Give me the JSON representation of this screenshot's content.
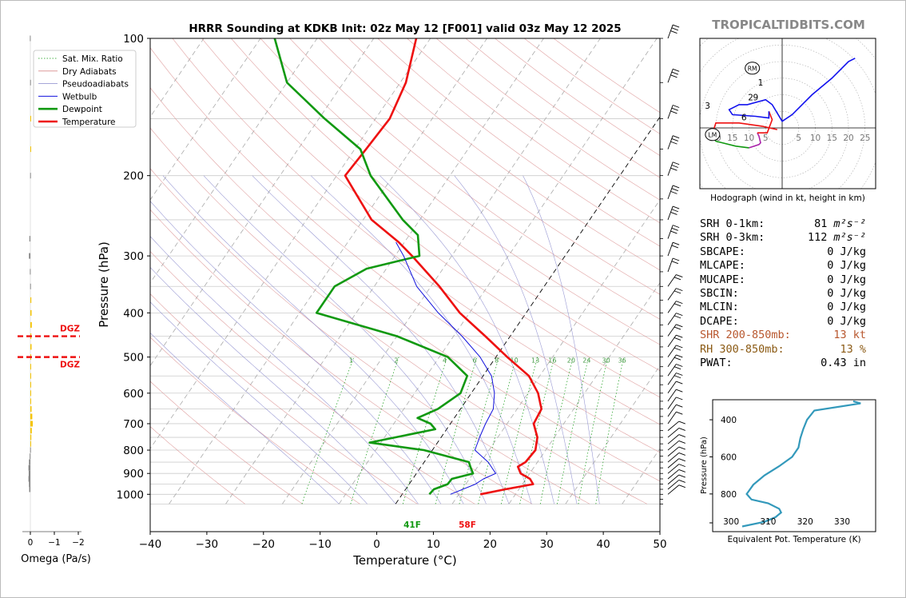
{
  "page": {
    "title": "HRRR Sounding at KDKB Init: 02z May 12 [F001] valid 03z May 12 2025",
    "watermark": "TROPICALTIDBITS.COM"
  },
  "chart_data": [
    {
      "type": "line",
      "name": "skew-t",
      "ylabel": "Pressure (hPa)",
      "xlabel": "Temperature (°C)",
      "y_scale": "log",
      "ylim": [
        1050,
        100
      ],
      "xlim": [
        -40,
        50
      ],
      "y_ticks": [
        100,
        200,
        300,
        400,
        500,
        600,
        700,
        800,
        900,
        1000
      ],
      "x_ticks": [
        -40,
        -30,
        -20,
        -10,
        0,
        10,
        20,
        30,
        40,
        50
      ],
      "legend": [
        "Sat. Mix. Ratio",
        "Dry Adiabats",
        "Pseudoadiabats",
        "Wetbulb",
        "Dewpoint",
        "Temperature"
      ],
      "legend_location": "upper left",
      "mixing_ratio_labels": [
        "1",
        "2",
        "4",
        "6",
        "8",
        "10",
        "13",
        "16",
        "20",
        "24",
        "30",
        "36"
      ],
      "surface_labels": {
        "dewpoint": "41F",
        "temperature": "58F"
      },
      "series": [
        {
          "name": "Temperature",
          "color": "#ee1111",
          "points": [
            [
              1000,
              13.8
            ],
            [
              975,
              17.6
            ],
            [
              950,
              21.9
            ],
            [
              925,
              20.7
            ],
            [
              900,
              18.4
            ],
            [
              870,
              17.1
            ],
            [
              850,
              17.9
            ],
            [
              800,
              18.2
            ],
            [
              750,
              17.0
            ],
            [
              700,
              14.7
            ],
            [
              650,
              14.3
            ],
            [
              600,
              11.8
            ],
            [
              550,
              8.1
            ],
            [
              500,
              2.0
            ],
            [
              450,
              -4.4
            ],
            [
              400,
              -11.7
            ],
            [
              350,
              -18.5
            ],
            [
              300,
              -27.0
            ],
            [
              280,
              -31.0
            ],
            [
              250,
              -38.5
            ],
            [
              200,
              -48.5
            ],
            [
              175,
              -48.0
            ],
            [
              150,
              -47.5
            ],
            [
              125,
              -49.0
            ],
            [
              100,
              -52.5
            ]
          ]
        },
        {
          "name": "Dewpoint",
          "color": "#119911",
          "points": [
            [
              1000,
              4.8
            ],
            [
              975,
              5.0
            ],
            [
              950,
              6.8
            ],
            [
              925,
              6.9
            ],
            [
              900,
              10.0
            ],
            [
              870,
              8.7
            ],
            [
              850,
              7.9
            ],
            [
              800,
              -1.5
            ],
            [
              770,
              -12.0
            ],
            [
              720,
              -2.0
            ],
            [
              700,
              -3.5
            ],
            [
              680,
              -6.5
            ],
            [
              650,
              -4.0
            ],
            [
              600,
              -1.9
            ],
            [
              550,
              -2.8
            ],
            [
              500,
              -8.5
            ],
            [
              450,
              -20.0
            ],
            [
              400,
              -37.0
            ],
            [
              350,
              -37.0
            ],
            [
              320,
              -33.5
            ],
            [
              300,
              -25.7
            ],
            [
              270,
              -28.5
            ],
            [
              250,
              -33.0
            ],
            [
              200,
              -44.0
            ],
            [
              175,
              -49.0
            ],
            [
              150,
              -59.0
            ],
            [
              125,
              -70.0
            ],
            [
              100,
              -77.5
            ]
          ]
        },
        {
          "name": "Wetbulb",
          "color": "#1111dd",
          "points": [
            [
              1000,
              8.5
            ],
            [
              950,
              11.7
            ],
            [
              925,
              12.5
            ],
            [
              900,
              14.0
            ],
            [
              850,
              11.3
            ],
            [
              800,
              7.5
            ],
            [
              750,
              6.8
            ],
            [
              700,
              6.2
            ],
            [
              650,
              5.8
            ],
            [
              600,
              4.1
            ],
            [
              550,
              1.5
            ],
            [
              500,
              -2.8
            ],
            [
              450,
              -8.5
            ],
            [
              400,
              -15.5
            ],
            [
              350,
              -22.5
            ],
            [
              300,
              -28.5
            ],
            [
              280,
              -31.5
            ]
          ]
        }
      ]
    },
    {
      "type": "bar",
      "name": "omega-profile",
      "xlabel": "Omega (Pa/s)",
      "x_ticks": [
        "0",
        "−1",
        "−2"
      ],
      "dgz_label": "DGZ",
      "dgz_layer_hpa": [
        450,
        500
      ],
      "levels_hpa": [
        100,
        125,
        150,
        175,
        200,
        275,
        300,
        325,
        350,
        375,
        400,
        425,
        450,
        475,
        500,
        525,
        550,
        575,
        600,
        625,
        650,
        675,
        700,
        725,
        750,
        775,
        800,
        825,
        850,
        875,
        900,
        925,
        950,
        975
      ],
      "values": [
        0.02,
        0.01,
        -0.02,
        -0.01,
        0.01,
        0.04,
        0.06,
        0.02,
        0.01,
        -0.04,
        -0.05,
        -0.06,
        -0.04,
        -0.05,
        -0.03,
        -0.03,
        -0.02,
        -0.02,
        -0.02,
        -0.03,
        -0.05,
        -0.08,
        -0.1,
        -0.06,
        -0.04,
        -0.02,
        0.01,
        0.03,
        0.06,
        0.08,
        0.07,
        0.08,
        0.06,
        0.05
      ]
    },
    {
      "type": "line",
      "name": "hodograph",
      "title": "Hodograph (wind in kt, height in km)",
      "ring_labels": [
        "20",
        "15",
        "10",
        "5",
        "5",
        "10",
        "15",
        "20",
        "25"
      ],
      "markers": [
        "RM",
        "LM"
      ],
      "height_labels": [
        "1",
        "2",
        "3",
        "6",
        "9"
      ],
      "series": [
        {
          "name": "0-1 km",
          "color": "#ee1111",
          "points": [
            [
              -1.5,
              -0.5
            ],
            [
              -6,
              0.5
            ],
            [
              -13,
              1.5
            ],
            [
              -20,
              1.5
            ],
            [
              -21,
              -1.5
            ]
          ]
        },
        {
          "name": "1-3 km",
          "color": "#119911",
          "points": [
            [
              -21,
              -1.5
            ],
            [
              -20,
              -4
            ],
            [
              -14,
              -5.5
            ],
            [
              -10,
              -6
            ]
          ]
        },
        {
          "name": "3-6 km",
          "color": "#aa22aa",
          "points": [
            [
              -10,
              -6
            ],
            [
              -7,
              -5
            ],
            [
              -6.5,
              -4.5
            ],
            [
              -7,
              -2.5
            ],
            [
              -7.5,
              -1.5
            ]
          ]
        },
        {
          "name": "6-9 km",
          "color": "#ee1111",
          "points": [
            [
              -7.5,
              -1.5
            ],
            [
              -4.5,
              -1.5
            ],
            [
              -3,
              2.5
            ],
            [
              -4,
              5
            ]
          ]
        },
        {
          "name": "9+ km",
          "color": "#1111ee",
          "points": [
            [
              -4,
              5
            ],
            [
              -4,
              3
            ],
            [
              -8,
              3.5
            ],
            [
              -15,
              4
            ],
            [
              -16,
              5.5
            ],
            [
              -13,
              7
            ],
            [
              -10.5,
              7
            ],
            [
              -5,
              8.5
            ],
            [
              -3,
              7
            ],
            [
              0,
              2
            ],
            [
              3,
              4
            ],
            [
              9,
              10
            ],
            [
              15,
              15
            ],
            [
              20,
              20
            ],
            [
              22,
              21
            ]
          ]
        }
      ],
      "rm": [
        -9,
        18
      ],
      "lm": [
        -21,
        -2
      ]
    },
    {
      "type": "line",
      "name": "theta-e-profile",
      "xlabel": "Equivalent Pot. Temperature (K)",
      "ylabel": "Pressure (hPa)",
      "y_ticks": [
        400,
        600,
        800
      ],
      "x_ticks": [
        300,
        310,
        320,
        330
      ],
      "series": [
        {
          "name": "Equivalent Pot. Temperature",
          "color": "#3399bb",
          "points": [
            [
              300,
              333
            ],
            [
              312,
              335
            ],
            [
              350,
              322.5
            ],
            [
              400,
              320.5
            ],
            [
              450,
              319.5
            ],
            [
              500,
              318.7
            ],
            [
              550,
              318.2
            ],
            [
              600,
              316.5
            ],
            [
              650,
              313
            ],
            [
              700,
              309
            ],
            [
              750,
              306
            ],
            [
              800,
              304.2
            ],
            [
              830,
              305.5
            ],
            [
              850,
              310
            ],
            [
              880,
              313
            ],
            [
              900,
              313.5
            ],
            [
              925,
              312
            ],
            [
              950,
              309
            ],
            [
              975,
              303
            ]
          ]
        }
      ]
    }
  ],
  "stats": [
    {
      "label": "SRH 0-1km:",
      "value": "81",
      "unit": "m²s⁻²",
      "color": "#000000"
    },
    {
      "label": "SRH 0-3km:",
      "value": "112",
      "unit": "m²s⁻²",
      "color": "#000000"
    },
    {
      "label": "SBCAPE:",
      "value": "0 J/kg",
      "color": "#000000"
    },
    {
      "label": "MLCAPE:",
      "value": "0 J/kg",
      "color": "#000000"
    },
    {
      "label": "MUCAPE:",
      "value": "0 J/kg",
      "color": "#000000"
    },
    {
      "label": "SBCIN:",
      "value": "0 J/kg",
      "color": "#000000"
    },
    {
      "label": "MLCIN:",
      "value": "0 J/kg",
      "color": "#000000"
    },
    {
      "label": "DCAPE:",
      "value": "0 J/kg",
      "color": "#000000"
    },
    {
      "label": "SHR 200-850mb:",
      "value": "13 kt",
      "color": "#b8572e"
    },
    {
      "label": "RH 300-850mb:",
      "value": "13 %",
      "color": "#8b5a14"
    },
    {
      "label": "PWAT:",
      "value": "0.43 in",
      "color": "#000000"
    }
  ]
}
